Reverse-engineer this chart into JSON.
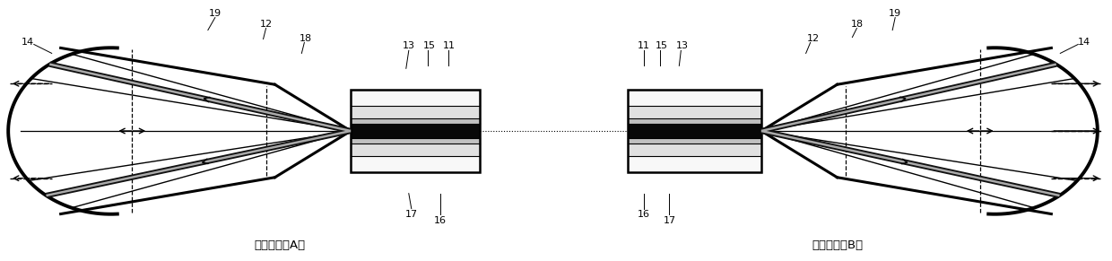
{
  "bg_color": "#ffffff",
  "lc": "#000000",
  "label_A": "第一端帽（A）",
  "label_B": "第二端帽（B）",
  "figsize": [
    12.4,
    2.91
  ],
  "dpi": 100
}
